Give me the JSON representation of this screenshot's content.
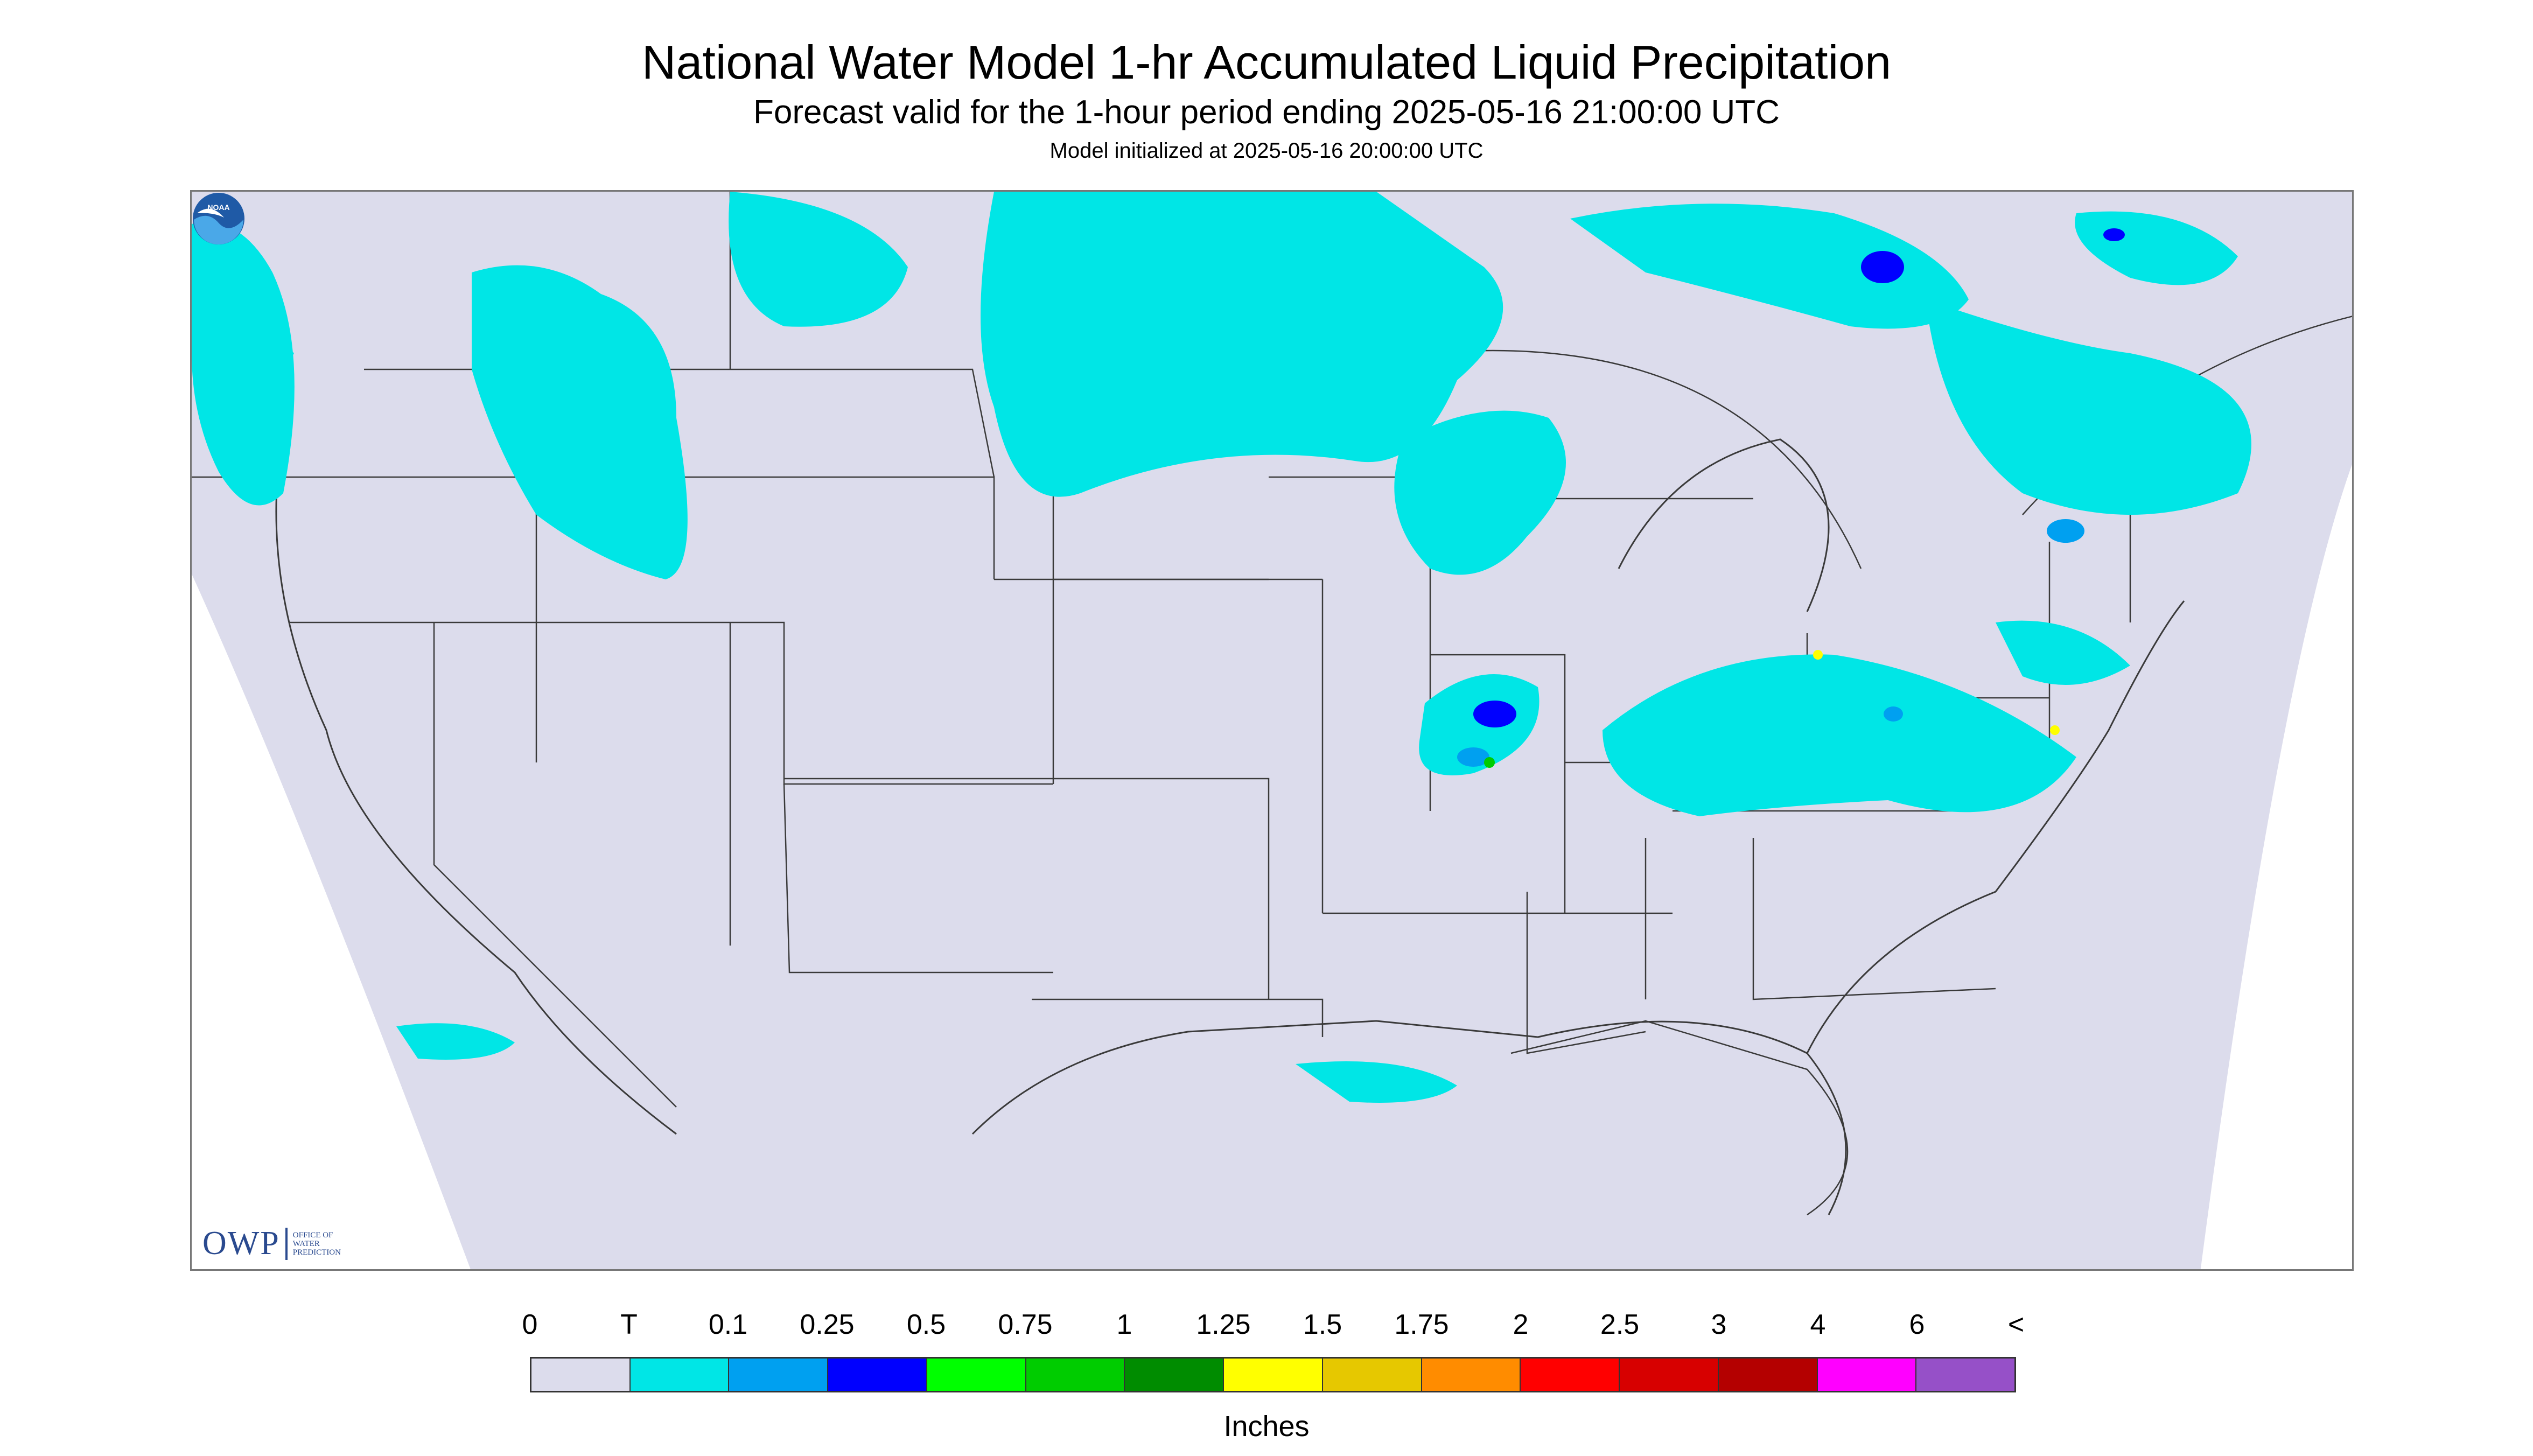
{
  "header": {
    "title": "National Water Model 1-hr Accumulated Liquid Precipitation",
    "subtitle": "Forecast valid for the 1-hour period ending 2025-05-16 21:00:00 UTC",
    "init_line": "Model initialized at 2025-05-16 20:00:00 UTC"
  },
  "branding": {
    "owp_logo_text": "OWP",
    "owp_subtext": [
      "OFFICE OF",
      "WATER",
      "PREDICTION"
    ],
    "noaa_logo_text": "NOAA"
  },
  "map": {
    "background_color": "#dcdcec",
    "outside_domain_color": "#ffffff",
    "border_color": "#3a3a3a",
    "precip_light_color": "#00e6e6",
    "precip_mid_color": "#00a0f0",
    "precip_heavy_color": "#0000ff",
    "precip_green_color": "#00cc00",
    "precip_yellow_color": "#ffff00"
  },
  "legend": {
    "labels": [
      "0",
      "T",
      "0.1",
      "0.25",
      "0.5",
      "0.75",
      "1",
      "1.25",
      "1.5",
      "1.75",
      "2",
      "2.5",
      "3",
      "4",
      "6",
      "<"
    ],
    "colors": [
      "#dcdcec",
      "#00e6e6",
      "#00a0f0",
      "#0000ff",
      "#00ff00",
      "#00cc00",
      "#008c00",
      "#ffff00",
      "#e6c800",
      "#ff8c00",
      "#ff0000",
      "#d70000",
      "#b40000",
      "#ff00ff",
      "#9650c8"
    ],
    "units": "Inches"
  }
}
